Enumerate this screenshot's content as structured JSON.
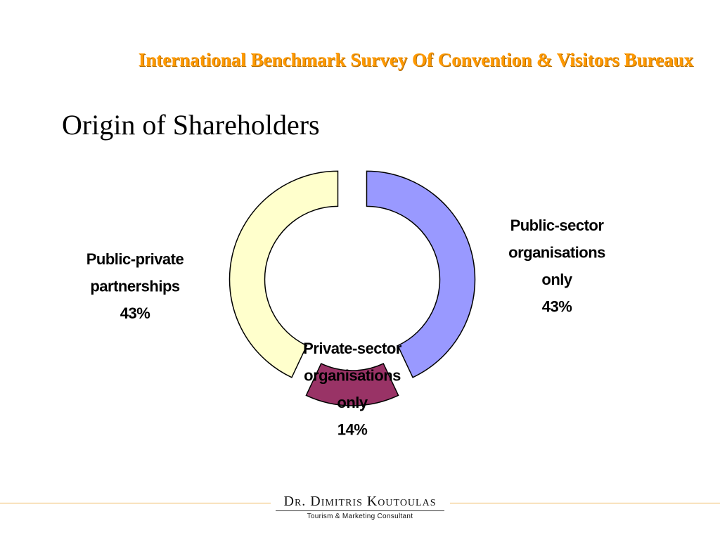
{
  "header": {
    "survey_title": "International Benchmark Survey Of Convention & Visitors Bureaux"
  },
  "slide": {
    "title": "Origin of Shareholders"
  },
  "chart_data": {
    "type": "pie",
    "style": "exploded-donut",
    "series": [
      {
        "name": "Public-sector organisations only",
        "label_lines": [
          "Public-sector",
          "organisations",
          "only",
          "43%"
        ],
        "value": 43,
        "color": "#9999ff"
      },
      {
        "name": "Private-sector organisations only",
        "label_lines": [
          "Private-sector",
          "organisations",
          "only",
          "14%"
        ],
        "value": 14,
        "color": "#993366"
      },
      {
        "name": "Public-private partnerships",
        "label_lines": [
          "Public-private",
          "partnerships",
          "43%"
        ],
        "value": 43,
        "color": "#ffffcc"
      }
    ]
  },
  "footer": {
    "consultant_name": "Dr. Dimitris Koutoulas",
    "consultant_role": "Tourism & Marketing Consultant"
  }
}
